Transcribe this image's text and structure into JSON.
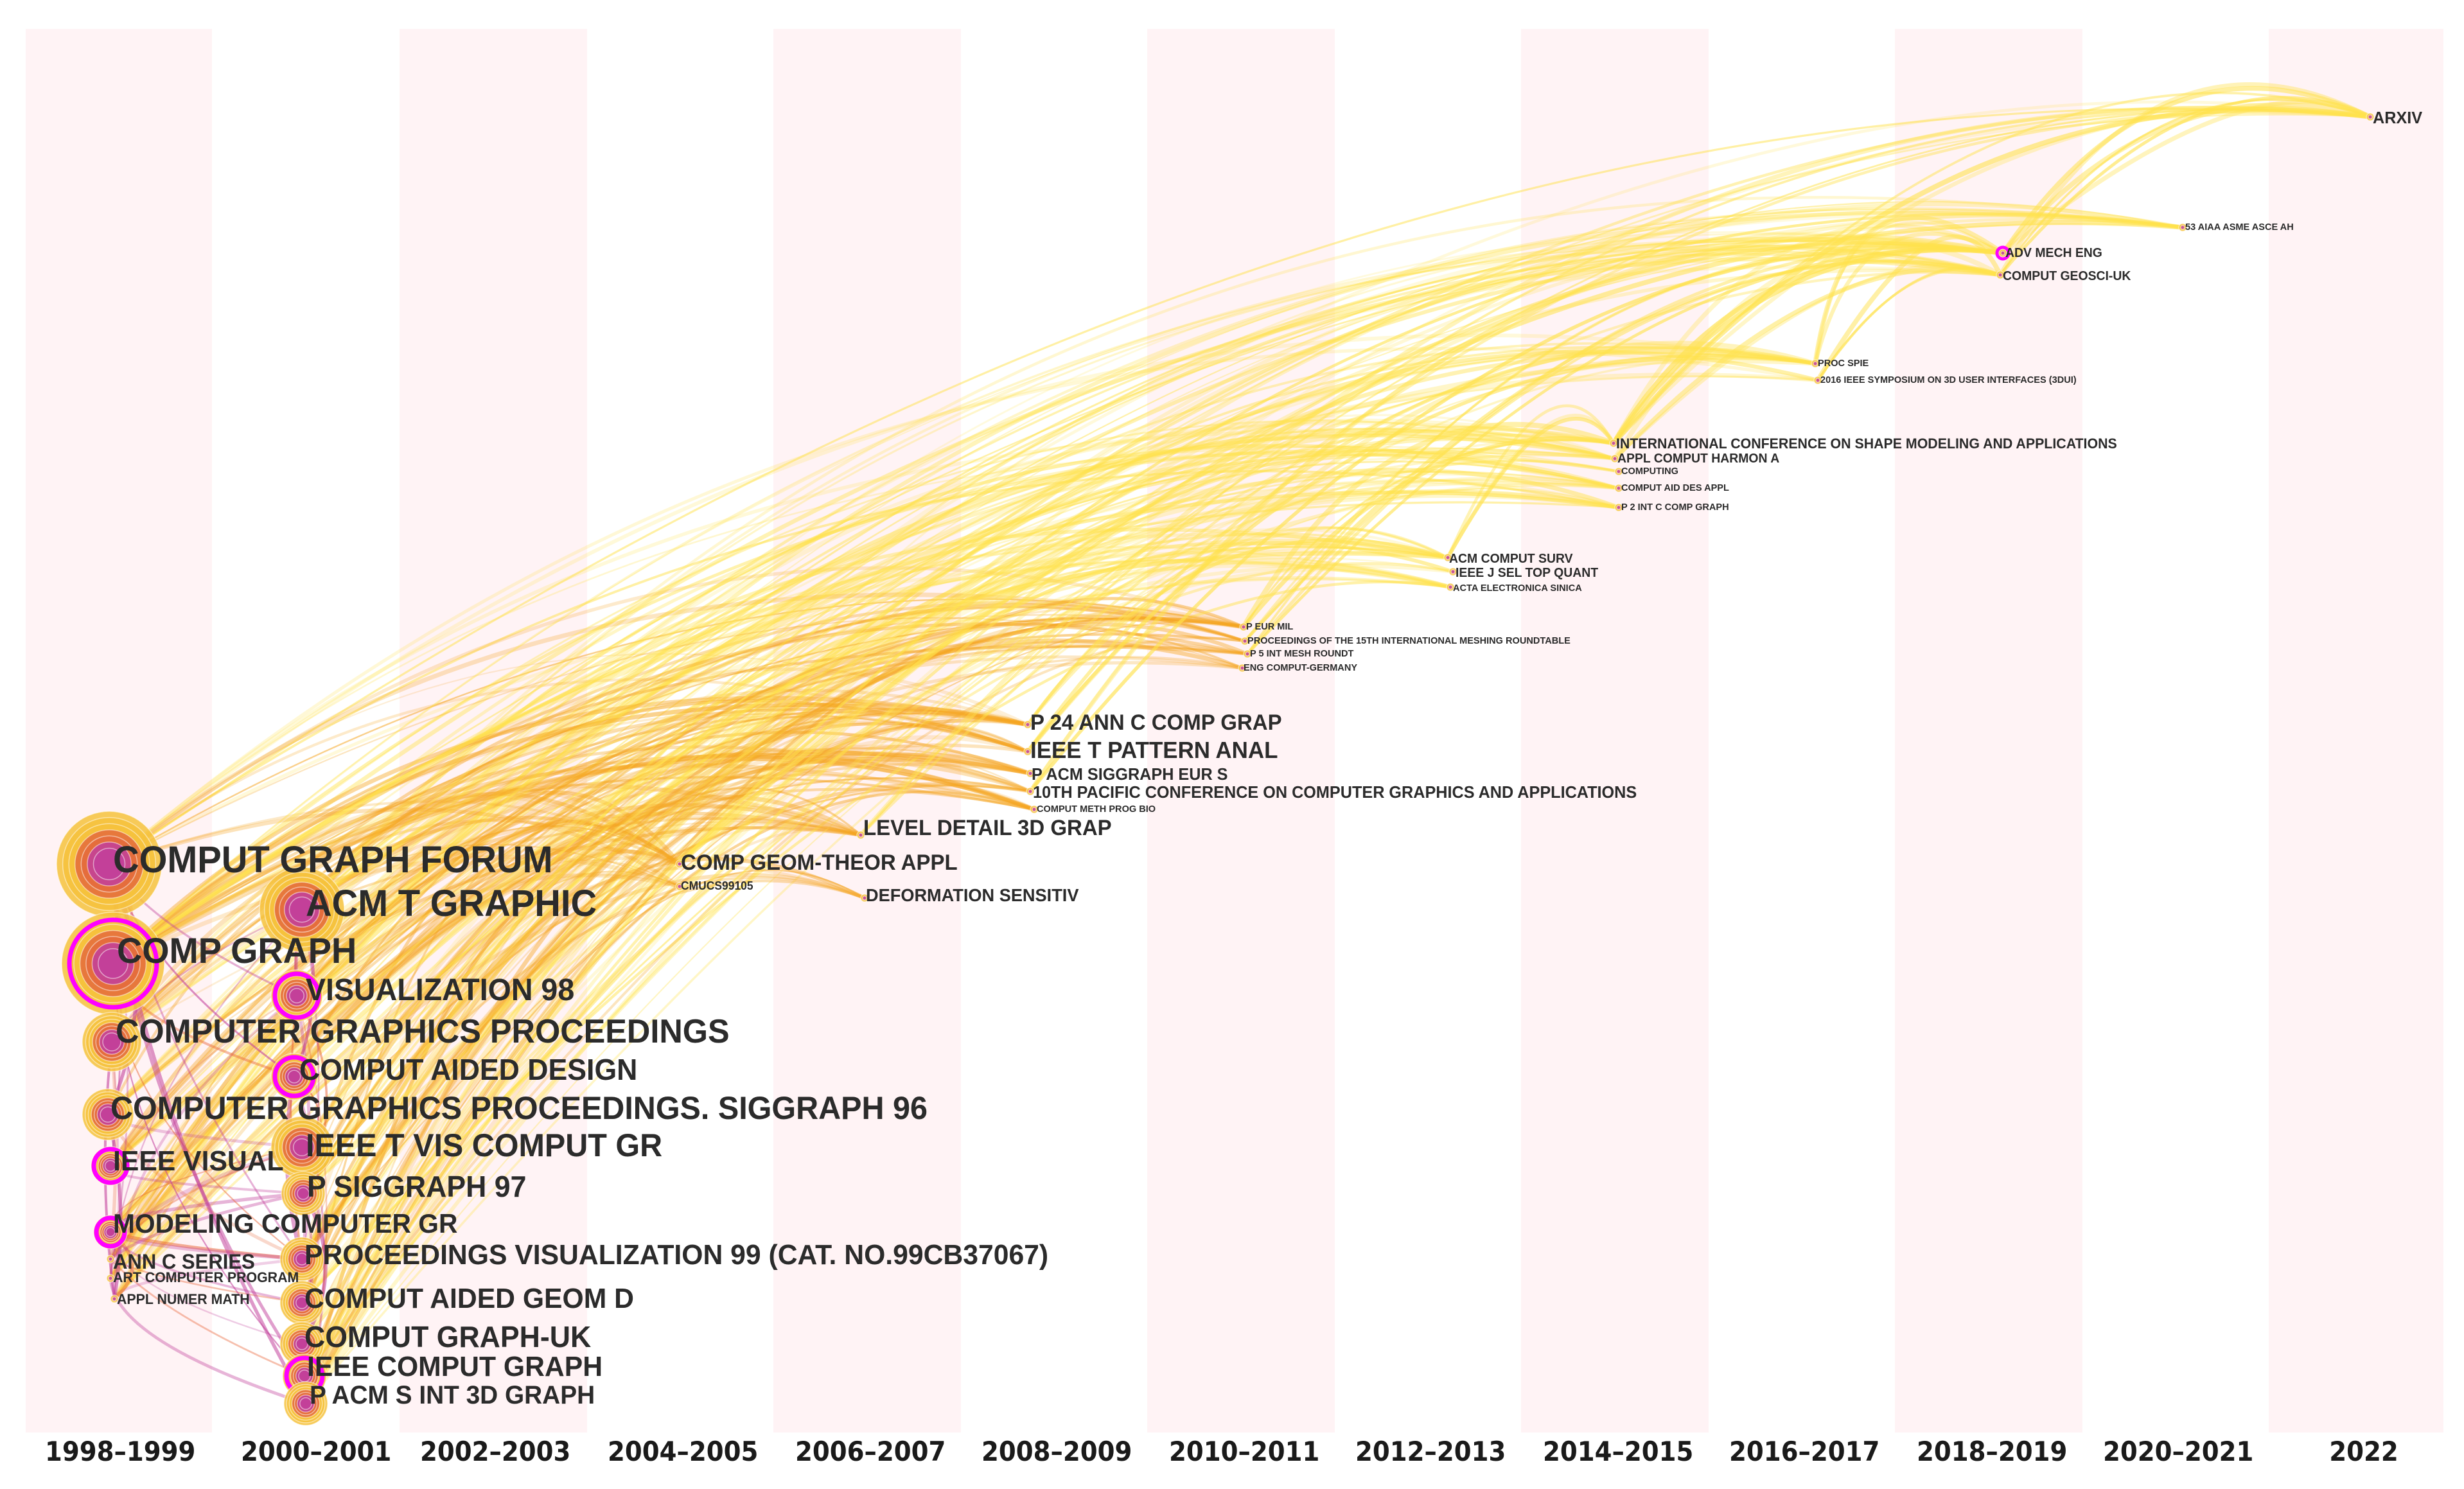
{
  "timeline": {
    "slices": [
      "1998–1999",
      "2000–2001",
      "2002–2003",
      "2004–2005",
      "2006–2007",
      "2008–2009",
      "2010–2011",
      "2012–2013",
      "2014–2015",
      "2016–2017",
      "2018–2019",
      "2020–2021",
      "2022"
    ],
    "band_color": "#fff3f5"
  },
  "colors": {
    "link_recent": "#ffe24d",
    "link_mid": "#f5a623",
    "link_early": "#e8673a",
    "link_oldest": "#c2409b",
    "node_outer": "#f6c23c",
    "node_inner": "#e46b3c",
    "node_core": "#c2409b",
    "centrality_ring": "#ff00ff"
  },
  "journals": [
    {
      "label": "COMPUT GRAPH FORUM",
      "slice": 0,
      "size": "xl",
      "ring": false
    },
    {
      "label": "ACM T GRAPHIC",
      "slice": 1,
      "size": "l",
      "ring": false
    },
    {
      "label": "COMP GRAPH",
      "slice": 0,
      "size": "xl",
      "ring": true
    },
    {
      "label": "VISUALIZATION 98",
      "slice": 1,
      "size": "m",
      "ring": true
    },
    {
      "label": "COMPUTER GRAPHICS PROCEEDINGS",
      "slice": 0,
      "size": "m",
      "ring": false
    },
    {
      "label": "COMPUT AIDED DESIGN",
      "slice": 1,
      "size": "m",
      "ring": true
    },
    {
      "label": "COMPUTER GRAPHICS PROCEEDINGS. SIGGRAPH 96",
      "slice": 0,
      "size": "m",
      "ring": false
    },
    {
      "label": "IEEE T VIS COMPUT GR",
      "slice": 1,
      "size": "m",
      "ring": false
    },
    {
      "label": "IEEE VISUAL",
      "slice": 0,
      "size": "s",
      "ring": true
    },
    {
      "label": "P SIGGRAPH 97",
      "slice": 1,
      "size": "s",
      "ring": false
    },
    {
      "label": "MODELING COMPUTER GR",
      "slice": 0,
      "size": "s",
      "ring": true
    },
    {
      "label": "ANN C SERIES",
      "slice": 0,
      "size": "xs",
      "ring": false
    },
    {
      "label": "ART COMPUTER PROGRAM",
      "slice": 0,
      "size": "xs",
      "ring": false
    },
    {
      "label": "APPL NUMER MATH",
      "slice": 0,
      "size": "xs",
      "ring": false
    },
    {
      "label": "PROCEEDINGS VISUALIZATION 99 (CAT. NO.99CB37067)",
      "slice": 1,
      "size": "s",
      "ring": false
    },
    {
      "label": "COMPUT AIDED GEOM D",
      "slice": 1,
      "size": "s",
      "ring": false
    },
    {
      "label": "COMPUT GRAPH-UK",
      "slice": 1,
      "size": "s",
      "ring": false
    },
    {
      "label": "IEEE COMPUT GRAPH",
      "slice": 1,
      "size": "s",
      "ring": true
    },
    {
      "label": "P ACM S INT 3D GRAPH",
      "slice": 1,
      "size": "s",
      "ring": false
    },
    {
      "label": "COMP GEOM-THEOR APPL",
      "slice": 3,
      "size": "xs",
      "ring": false
    },
    {
      "label": "CMUCS99105",
      "slice": 3,
      "size": "xs",
      "ring": false
    },
    {
      "label": "LEVEL DETAIL 3D GRAP",
      "slice": 4,
      "size": "xs",
      "ring": false
    },
    {
      "label": "DEFORMATION SENSITIV",
      "slice": 4,
      "size": "xs",
      "ring": false
    },
    {
      "label": "P 24 ANN C COMP GRAP",
      "slice": 5,
      "size": "xs",
      "ring": false
    },
    {
      "label": "IEEE T PATTERN ANAL",
      "slice": 5,
      "size": "xs",
      "ring": false
    },
    {
      "label": "P ACM SIGGRAPH EUR S",
      "slice": 5,
      "size": "xs",
      "ring": false
    },
    {
      "label": "10TH PACIFIC CONFERENCE ON COMPUTER GRAPHICS AND APPLICATIONS",
      "slice": 5,
      "size": "xs",
      "ring": false
    },
    {
      "label": "COMPUT METH PROG BIO",
      "slice": 5,
      "size": "xs",
      "ring": false
    },
    {
      "label": "P EUR MIL",
      "slice": 6,
      "size": "xs",
      "ring": false
    },
    {
      "label": "PROCEEDINGS OF THE 15TH INTERNATIONAL MESHING ROUNDTABLE",
      "slice": 6,
      "size": "xs",
      "ring": false
    },
    {
      "label": "P 5 INT MESH ROUNDT",
      "slice": 6,
      "size": "xs",
      "ring": false
    },
    {
      "label": "ENG COMPUT-GERMANY",
      "slice": 6,
      "size": "xs",
      "ring": false
    },
    {
      "label": "ACM COMPUT SURV",
      "slice": 7,
      "size": "xs",
      "ring": false
    },
    {
      "label": "IEEE J SEL TOP QUANT",
      "slice": 7,
      "size": "xs",
      "ring": false
    },
    {
      "label": "ACTA ELECTRONICA SINICA",
      "slice": 7,
      "size": "xs",
      "ring": false
    },
    {
      "label": "INTERNATIONAL CONFERENCE ON SHAPE MODELING AND APPLICATIONS",
      "slice": 8,
      "size": "xs",
      "ring": false
    },
    {
      "label": "APPL COMPUT HARMON A",
      "slice": 8,
      "size": "xs",
      "ring": false
    },
    {
      "label": "COMPUTING",
      "slice": 8,
      "size": "xs",
      "ring": false
    },
    {
      "label": "COMPUT AID DES APPL",
      "slice": 8,
      "size": "xs",
      "ring": false
    },
    {
      "label": "P 2 INT C COMP GRAPH",
      "slice": 8,
      "size": "xs",
      "ring": false
    },
    {
      "label": "PROC SPIE",
      "slice": 9,
      "size": "xs",
      "ring": false
    },
    {
      "label": "2016 IEEE SYMPOSIUM ON 3D USER INTERFACES (3DUI)",
      "slice": 9,
      "size": "xs",
      "ring": false
    },
    {
      "label": "ADV MECH ENG",
      "slice": 10,
      "size": "xs",
      "ring": true
    },
    {
      "label": "COMPUT GEOSCI-UK",
      "slice": 10,
      "size": "xs",
      "ring": false
    },
    {
      "label": "53 AIAA ASME ASCE AH",
      "slice": 11,
      "size": "xs",
      "ring": false
    },
    {
      "label": "ARXIV",
      "slice": 12,
      "size": "xs",
      "ring": false
    }
  ]
}
